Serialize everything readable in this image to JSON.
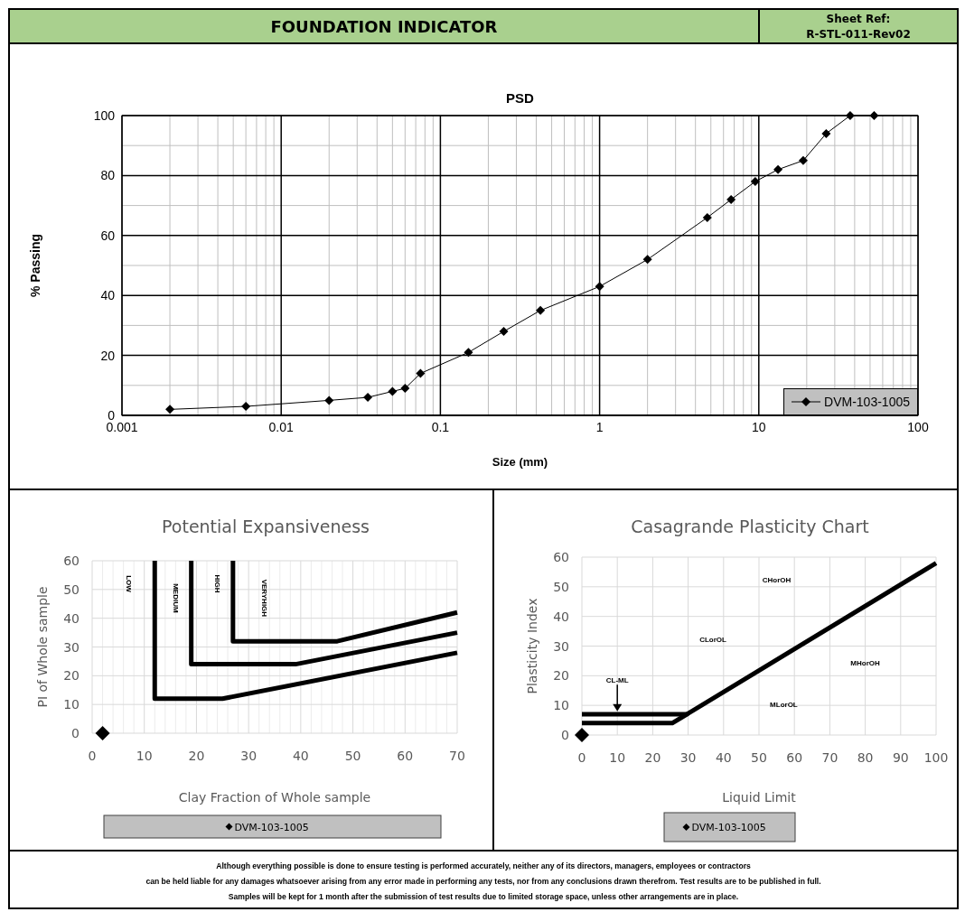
{
  "chart_data": [
    {
      "type": "other",
      "title": "FOUNDATION INDICATOR",
      "annotations": [
        "Sheet Ref:",
        "R-STL-011-Rev02",
        "Although everything possible is done to ensure testing is performed accurately, neither any of its directors, managers, employees or contractors",
        "can be held liable for any damages whatsoever arising from any error made in performing any tests, nor from any conclusions drawn therefrom. Test results are to be published in full.",
        "Samples will be kept for 1 month after the submission of test results due to limited storage space, unless other arrangements are in place."
      ]
    },
    {
      "type": "line",
      "title": "PSD",
      "xlabel": "Size (mm)",
      "ylabel": "% Passing",
      "log": "x",
      "xlim": [
        0.001,
        100
      ],
      "xticks": [
        0.001,
        0.01,
        0.1,
        1,
        10,
        100
      ],
      "ylim": [
        0,
        100
      ],
      "yticks": [
        0,
        20,
        40,
        60,
        80,
        100
      ],
      "grid": true,
      "legend": "bottom right",
      "marker": "diamond",
      "series": [
        {
          "name": "DVM-103-1005",
          "color": "#000000",
          "x": [
            0.002,
            0.006,
            0.02,
            0.035,
            0.05,
            0.06,
            0.075,
            0.15,
            0.25,
            0.425,
            1,
            2,
            4.75,
            6.7,
            9.5,
            13.2,
            19,
            26.5,
            37.5,
            53
          ],
          "values": [
            2,
            3,
            5,
            6,
            8,
            9,
            14,
            21,
            28,
            35,
            43,
            52,
            66,
            72,
            78,
            82,
            85,
            94,
            100,
            100
          ]
        }
      ]
    },
    {
      "type": "scatter",
      "title": "Potential Expansiveness",
      "xlabel": "Clay Fraction of Whole sample",
      "ylabel": "PI of Whole sample",
      "xlim": [
        0,
        70
      ],
      "xticks": [
        0,
        10,
        20,
        30,
        40,
        50,
        60,
        70
      ],
      "ylim": [
        0,
        60
      ],
      "yticks": [
        0,
        10,
        20,
        30,
        40,
        50,
        60
      ],
      "grid": true,
      "legend": "bottom",
      "marker": "diamond",
      "annotations": [
        "LOW",
        "MEDIUM",
        "HIGH",
        "VERYHIGH"
      ],
      "series": [
        {
          "type": "line",
          "marker": "none",
          "color": "#000000",
          "x": [
            12,
            12,
            25,
            70
          ],
          "values": [
            60,
            12,
            12,
            28
          ]
        },
        {
          "type": "line",
          "marker": "none",
          "color": "#000000",
          "x": [
            19,
            19,
            39,
            70
          ],
          "values": [
            60,
            24,
            24,
            35
          ]
        },
        {
          "type": "line",
          "marker": "none",
          "color": "#000000",
          "x": [
            27,
            27,
            47,
            70
          ],
          "values": [
            60,
            32,
            32,
            42
          ]
        },
        {
          "name": "DVM-103-1005",
          "color": "#000000",
          "x": [
            2
          ],
          "values": [
            0
          ]
        }
      ]
    },
    {
      "type": "scatter",
      "title": "Casagrande Plasticity Chart",
      "xlabel": "Liquid Limit",
      "ylabel": "Plasticity Index",
      "xlim": [
        0,
        100
      ],
      "xticks": [
        0,
        10,
        20,
        30,
        40,
        50,
        60,
        70,
        80,
        90,
        100
      ],
      "ylim": [
        0,
        60
      ],
      "yticks": [
        0,
        10,
        20,
        30,
        40,
        50,
        60
      ],
      "grid": true,
      "legend": "bottom",
      "marker": "diamond",
      "annotations": [
        "CHorOH",
        "CLorOL",
        {
          "text": "CL-ML",
          "x": 10,
          "y": 8
        },
        "MHorOH",
        "MLorOL"
      ],
      "series": [
        {
          "type": "line",
          "marker": "none",
          "color": "#000000",
          "x": [
            0,
            29.6
          ],
          "values": [
            7,
            7
          ]
        },
        {
          "type": "line",
          "marker": "none",
          "color": "#000000",
          "x": [
            0,
            25.5,
            100
          ],
          "values": [
            4,
            4,
            58
          ]
        },
        {
          "name": "DVM-103-1005",
          "color": "#000000",
          "x": [
            0
          ],
          "values": [
            0
          ]
        }
      ]
    }
  ]
}
